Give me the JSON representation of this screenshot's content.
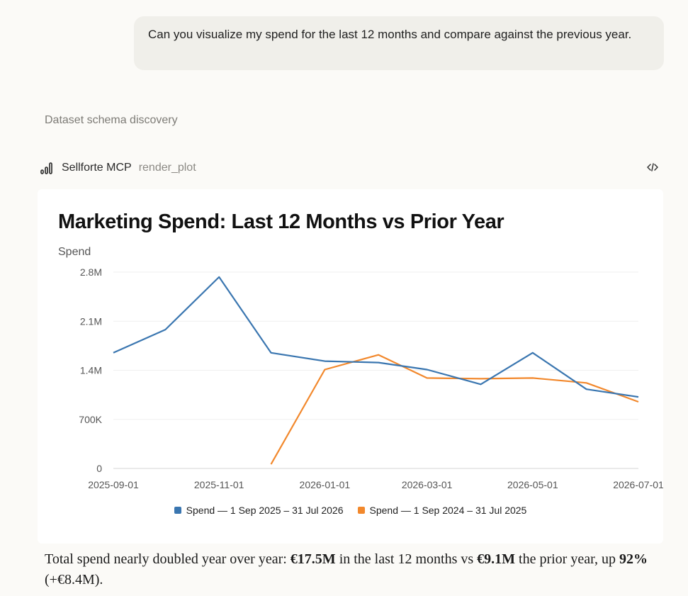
{
  "user_message": "Can you visualize my spend for the last 12 months and compare against the previous year.",
  "step": {
    "label": "Dataset schema discovery"
  },
  "tool": {
    "name": "Sellforte MCP",
    "function": "render_plot",
    "icon": "bar-chart-icon",
    "code_icon": "code-icon"
  },
  "chart_data": {
    "type": "line",
    "title": "Marketing Spend: Last 12 Months vs Prior Year",
    "ylabel": "Spend",
    "xlabel": "",
    "ylim": [
      0,
      2800000
    ],
    "yticks": [
      0,
      700000,
      1400000,
      2100000,
      2800000
    ],
    "ytick_labels": [
      "0",
      "700K",
      "1.4M",
      "2.1M",
      "2.8M"
    ],
    "x": [
      "2025-09-01",
      "2025-10-01",
      "2025-11-01",
      "2025-12-01",
      "2026-01-01",
      "2026-02-01",
      "2026-03-01",
      "2026-04-01",
      "2026-05-01",
      "2026-06-01",
      "2026-07-01"
    ],
    "xtick_labels": [
      "2025-09-01",
      "2025-11-01",
      "2026-01-01",
      "2026-03-01",
      "2026-05-01",
      "2026-07-01"
    ],
    "grid": true,
    "legend_position": "bottom-center",
    "series": [
      {
        "name": "Spend — 1 Sep 2025 – 31 Jul 2026",
        "color": "#3a76b0",
        "values": [
          1650000,
          1980000,
          2730000,
          1650000,
          1530000,
          1510000,
          1410000,
          1200000,
          1650000,
          1130000,
          1020000
        ]
      },
      {
        "name": "Spend — 1 Sep 2024 – 31 Jul 2025",
        "color": "#f2882c",
        "values": [
          null,
          null,
          null,
          60000,
          1410000,
          1620000,
          1290000,
          1280000,
          1290000,
          1220000,
          950000
        ]
      }
    ]
  },
  "summary": {
    "p1": "Total spend nearly doubled year over year: ",
    "b1": "€17.5M",
    "p2": " in the last 12 months vs ",
    "b2": "€9.1M",
    "p3": " the prior year, up ",
    "b3": "92%",
    "p4": " (+€8.4M)."
  }
}
